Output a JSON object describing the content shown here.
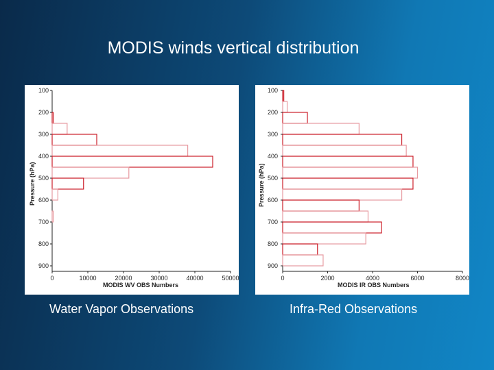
{
  "slide": {
    "title": "MODIS winds vertical distribution"
  },
  "captions": {
    "wv": "Water Vapor Observations",
    "ir": "Infra-Red Observations"
  },
  "colors": {
    "bar_dark": "#cc1f2a",
    "bar_light": "#e79aa0",
    "axis": "#222222"
  },
  "chart_data": [
    {
      "type": "bar",
      "orientation": "horizontal",
      "xlabel": "MODIS WV OBS Numbers",
      "ylabel": "Pressure (hPa)",
      "xlim": [
        0,
        50000
      ],
      "xticks": [
        0,
        10000,
        20000,
        30000,
        40000,
        50000
      ],
      "xtick_labels": [
        "0",
        "10000",
        "20000",
        "30000",
        "40000",
        "50000"
      ],
      "ylim": [
        100,
        925
      ],
      "yticks": [
        100,
        200,
        300,
        400,
        500,
        600,
        700,
        800,
        900
      ],
      "ytick_labels": [
        "100",
        "200",
        "300",
        "400",
        "500",
        "600",
        "700",
        "800",
        "900"
      ],
      "bins": [
        {
          "from": 100,
          "to": 150,
          "value": 0
        },
        {
          "from": 150,
          "to": 200,
          "value": 0
        },
        {
          "from": 200,
          "to": 250,
          "value": 300
        },
        {
          "from": 250,
          "to": 300,
          "value": 4200
        },
        {
          "from": 300,
          "to": 350,
          "value": 12500
        },
        {
          "from": 350,
          "to": 400,
          "value": 38000
        },
        {
          "from": 400,
          "to": 450,
          "value": 45000
        },
        {
          "from": 450,
          "to": 500,
          "value": 21500
        },
        {
          "from": 500,
          "to": 550,
          "value": 8800
        },
        {
          "from": 550,
          "to": 600,
          "value": 1600
        },
        {
          "from": 600,
          "to": 650,
          "value": 0
        },
        {
          "from": 650,
          "to": 700,
          "value": 300
        },
        {
          "from": 700,
          "to": 750,
          "value": 0
        },
        {
          "from": 750,
          "to": 800,
          "value": 0
        },
        {
          "from": 800,
          "to": 850,
          "value": 0
        },
        {
          "from": 850,
          "to": 900,
          "value": 0
        },
        {
          "from": 900,
          "to": 925,
          "value": 0
        }
      ],
      "grid": false
    },
    {
      "type": "bar",
      "orientation": "horizontal",
      "xlabel": "MODIS IR OBS Numbers",
      "ylabel": "Pressure (hPa)",
      "xlim": [
        0,
        8000
      ],
      "xticks": [
        0,
        2000,
        4000,
        6000,
        8000
      ],
      "xtick_labels": [
        "0",
        "2000",
        "4000",
        "6000",
        "8000"
      ],
      "ylim": [
        100,
        925
      ],
      "yticks": [
        100,
        200,
        300,
        400,
        500,
        600,
        700,
        800,
        900
      ],
      "ytick_labels": [
        "100",
        "200",
        "300",
        "400",
        "500",
        "600",
        "700",
        "800",
        "900"
      ],
      "bins": [
        {
          "from": 100,
          "to": 150,
          "value": 50
        },
        {
          "from": 150,
          "to": 200,
          "value": 200
        },
        {
          "from": 200,
          "to": 250,
          "value": 1100
        },
        {
          "from": 250,
          "to": 300,
          "value": 3400
        },
        {
          "from": 300,
          "to": 350,
          "value": 5300
        },
        {
          "from": 350,
          "to": 400,
          "value": 5500
        },
        {
          "from": 400,
          "to": 450,
          "value": 5800
        },
        {
          "from": 450,
          "to": 500,
          "value": 6000
        },
        {
          "from": 500,
          "to": 550,
          "value": 5800
        },
        {
          "from": 550,
          "to": 600,
          "value": 5300
        },
        {
          "from": 600,
          "to": 650,
          "value": 3400
        },
        {
          "from": 650,
          "to": 700,
          "value": 3800
        },
        {
          "from": 700,
          "to": 750,
          "value": 4400
        },
        {
          "from": 750,
          "to": 800,
          "value": 3700
        },
        {
          "from": 800,
          "to": 850,
          "value": 1550
        },
        {
          "from": 850,
          "to": 900,
          "value": 1800
        },
        {
          "from": 900,
          "to": 925,
          "value": 0
        }
      ],
      "grid": false
    }
  ]
}
